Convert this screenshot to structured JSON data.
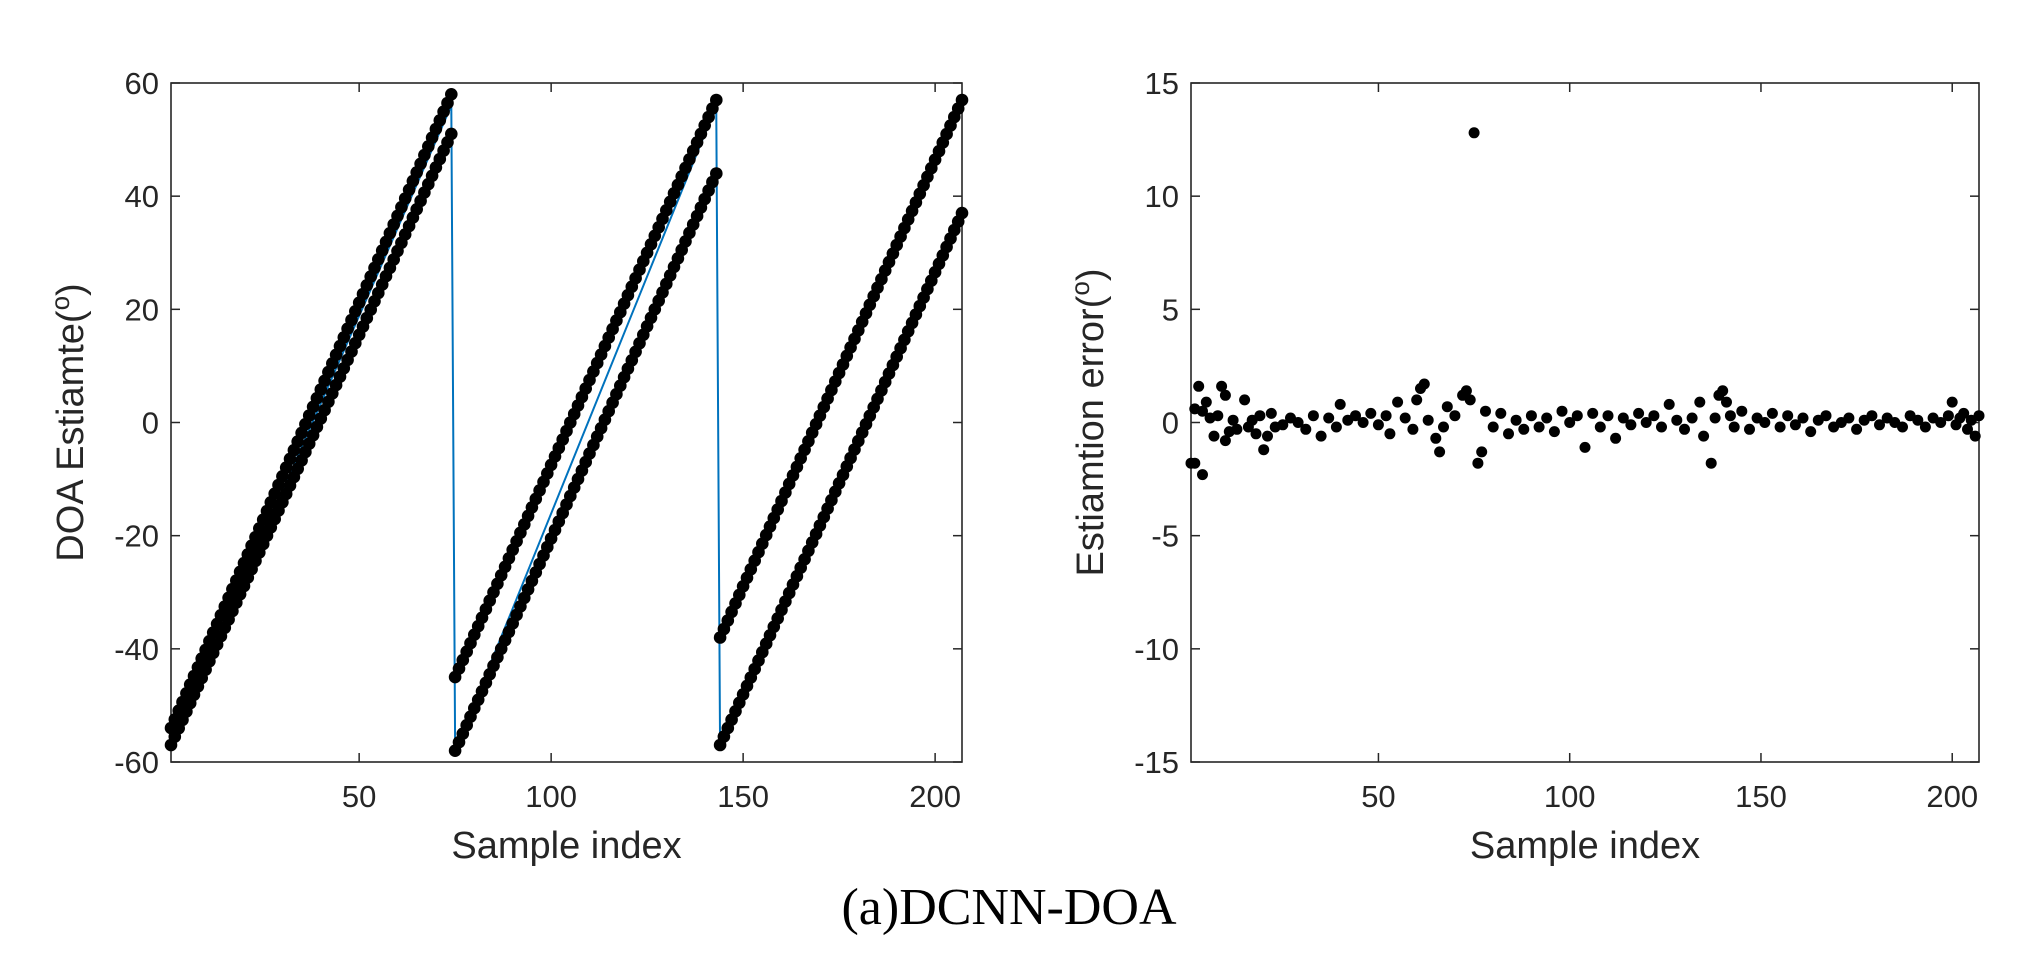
{
  "caption": "(a)DCNN-DOA",
  "colors": {
    "marker": "#000000",
    "true_line": "#0072BD",
    "axis": "#262626"
  },
  "chart_data": [
    {
      "type": "scatter",
      "title": "",
      "xlabel": "Sample index",
      "ylabel_prefix": "DOA Estiamte(",
      "ylabel_sup": "o",
      "ylabel_suffix": ")",
      "xlim": [
        1,
        207
      ],
      "ylim": [
        -60,
        60
      ],
      "xticks": [
        50,
        100,
        150,
        200
      ],
      "yticks": [
        -60,
        -40,
        -20,
        0,
        20,
        40,
        60
      ],
      "grid": false,
      "legend": "none",
      "segments": [
        {
          "x_start": 1,
          "x_end": 74,
          "track_a": [
            -54,
            58
          ],
          "track_b": [
            -57,
            51
          ],
          "true": [
            -57,
            56
          ]
        },
        {
          "x_start": 75,
          "x_end": 143,
          "track_a": [
            -45,
            57
          ],
          "track_b": [
            -58,
            44
          ],
          "true": [
            -58,
            56
          ]
        },
        {
          "x_start": 144,
          "x_end": 207,
          "track_a": [
            -38,
            57
          ],
          "track_b": [
            -57,
            37
          ],
          "true": [
            -58,
            36
          ]
        }
      ],
      "line_series": {
        "x": [
          1,
          74,
          75,
          143,
          144,
          207
        ],
        "y": [
          -57,
          56,
          -58,
          56,
          -58,
          36
        ]
      }
    },
    {
      "type": "scatter",
      "title": "",
      "xlabel": "Sample index",
      "ylabel_prefix": "Estiamtion error(",
      "ylabel_sup": "o",
      "ylabel_suffix": ")",
      "xlim": [
        1,
        207
      ],
      "ylim": [
        -15,
        15
      ],
      "xticks": [
        50,
        100,
        150,
        200
      ],
      "yticks": [
        -15,
        -10,
        -5,
        0,
        5,
        10,
        15
      ],
      "grid": false,
      "legend": "none",
      "points": [
        [
          1,
          -1.8
        ],
        [
          2,
          -1.8
        ],
        [
          2,
          0.6
        ],
        [
          3,
          1.6
        ],
        [
          4,
          -2.3
        ],
        [
          4,
          0.5
        ],
        [
          5,
          0.9
        ],
        [
          6,
          0.2
        ],
        [
          7,
          -0.6
        ],
        [
          8,
          0.3
        ],
        [
          9,
          1.6
        ],
        [
          10,
          -0.8
        ],
        [
          10,
          1.2
        ],
        [
          11,
          -0.4
        ],
        [
          12,
          0.1
        ],
        [
          13,
          -0.3
        ],
        [
          15,
          1.0
        ],
        [
          16,
          -0.2
        ],
        [
          17,
          0.1
        ],
        [
          18,
          -0.5
        ],
        [
          19,
          0.3
        ],
        [
          20,
          -1.2
        ],
        [
          21,
          -0.6
        ],
        [
          22,
          0.4
        ],
        [
          23,
          -0.2
        ],
        [
          25,
          -0.1
        ],
        [
          27,
          0.2
        ],
        [
          29,
          0.0
        ],
        [
          31,
          -0.3
        ],
        [
          33,
          0.3
        ],
        [
          35,
          -0.6
        ],
        [
          37,
          0.2
        ],
        [
          39,
          -0.2
        ],
        [
          40,
          0.8
        ],
        [
          42,
          0.1
        ],
        [
          44,
          0.3
        ],
        [
          46,
          0.0
        ],
        [
          48,
          0.4
        ],
        [
          50,
          -0.1
        ],
        [
          52,
          0.3
        ],
        [
          53,
          -0.5
        ],
        [
          55,
          0.9
        ],
        [
          57,
          0.2
        ],
        [
          59,
          -0.3
        ],
        [
          60,
          1.0
        ],
        [
          61,
          1.5
        ],
        [
          62,
          1.7
        ],
        [
          63,
          0.1
        ],
        [
          65,
          -0.7
        ],
        [
          66,
          -1.3
        ],
        [
          67,
          -0.2
        ],
        [
          68,
          0.7
        ],
        [
          70,
          0.3
        ],
        [
          72,
          1.2
        ],
        [
          73,
          1.4
        ],
        [
          74,
          1.0
        ],
        [
          75,
          12.8
        ],
        [
          76,
          -1.8
        ],
        [
          77,
          -1.3
        ],
        [
          78,
          0.5
        ],
        [
          80,
          -0.2
        ],
        [
          82,
          0.4
        ],
        [
          84,
          -0.5
        ],
        [
          86,
          0.1
        ],
        [
          88,
          -0.3
        ],
        [
          90,
          0.3
        ],
        [
          92,
          -0.2
        ],
        [
          94,
          0.2
        ],
        [
          96,
          -0.4
        ],
        [
          98,
          0.5
        ],
        [
          100,
          0.0
        ],
        [
          102,
          0.3
        ],
        [
          104,
          -1.1
        ],
        [
          106,
          0.4
        ],
        [
          108,
          -0.2
        ],
        [
          110,
          0.3
        ],
        [
          112,
          -0.7
        ],
        [
          114,
          0.2
        ],
        [
          116,
          -0.1
        ],
        [
          118,
          0.4
        ],
        [
          120,
          0.0
        ],
        [
          122,
          0.3
        ],
        [
          124,
          -0.2
        ],
        [
          126,
          0.8
        ],
        [
          128,
          0.1
        ],
        [
          130,
          -0.3
        ],
        [
          132,
          0.2
        ],
        [
          134,
          0.9
        ],
        [
          135,
          -0.6
        ],
        [
          137,
          -1.8
        ],
        [
          138,
          0.2
        ],
        [
          139,
          1.2
        ],
        [
          140,
          1.4
        ],
        [
          141,
          0.9
        ],
        [
          142,
          0.3
        ],
        [
          143,
          -0.2
        ],
        [
          145,
          0.5
        ],
        [
          147,
          -0.3
        ],
        [
          149,
          0.2
        ],
        [
          151,
          0.0
        ],
        [
          153,
          0.4
        ],
        [
          155,
          -0.2
        ],
        [
          157,
          0.3
        ],
        [
          159,
          -0.1
        ],
        [
          161,
          0.2
        ],
        [
          163,
          -0.4
        ],
        [
          165,
          0.1
        ],
        [
          167,
          0.3
        ],
        [
          169,
          -0.2
        ],
        [
          171,
          0.0
        ],
        [
          173,
          0.2
        ],
        [
          175,
          -0.3
        ],
        [
          177,
          0.1
        ],
        [
          179,
          0.3
        ],
        [
          181,
          -0.1
        ],
        [
          183,
          0.2
        ],
        [
          185,
          0.0
        ],
        [
          187,
          -0.2
        ],
        [
          189,
          0.3
        ],
        [
          191,
          0.1
        ],
        [
          193,
          -0.2
        ],
        [
          195,
          0.2
        ],
        [
          197,
          0.0
        ],
        [
          199,
          0.3
        ],
        [
          200,
          0.9
        ],
        [
          201,
          -0.1
        ],
        [
          202,
          0.2
        ],
        [
          203,
          0.4
        ],
        [
          204,
          -0.3
        ],
        [
          205,
          0.1
        ],
        [
          206,
          -0.6
        ],
        [
          207,
          0.3
        ]
      ]
    }
  ]
}
